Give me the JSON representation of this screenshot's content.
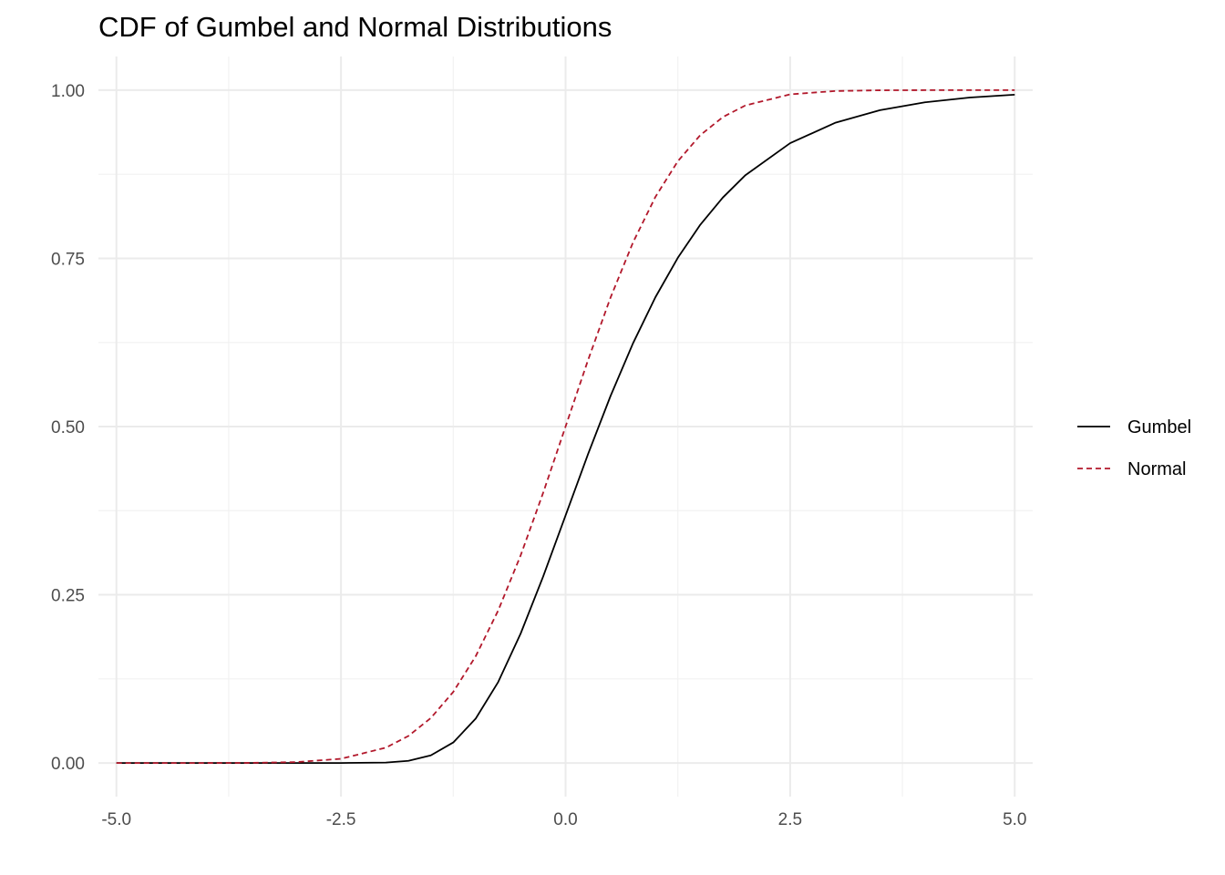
{
  "chart_data": {
    "type": "line",
    "title": "CDF of Gumbel and Normal Distributions",
    "xlabel": "",
    "ylabel": "",
    "xlim": [
      -5.2,
      5.2
    ],
    "ylim": [
      -0.05,
      1.05
    ],
    "x_ticks": [
      -5.0,
      -2.5,
      0.0,
      2.5,
      5.0
    ],
    "x_tick_labels": [
      "-5.0",
      "-2.5",
      "0.0",
      "2.5",
      "5.0"
    ],
    "y_ticks": [
      0.0,
      0.25,
      0.5,
      0.75,
      1.0
    ],
    "y_tick_labels": [
      "0.00",
      "0.25",
      "0.50",
      "0.75",
      "1.00"
    ],
    "grid": true,
    "legend_position": "right",
    "x": [
      -5.0,
      -4.5,
      -4.0,
      -3.5,
      -3.0,
      -2.5,
      -2.0,
      -1.75,
      -1.5,
      -1.25,
      -1.0,
      -0.75,
      -0.5,
      -0.25,
      0.0,
      0.25,
      0.5,
      0.75,
      1.0,
      1.25,
      1.5,
      1.75,
      2.0,
      2.5,
      3.0,
      3.5,
      4.0,
      4.5,
      5.0
    ],
    "series": [
      {
        "name": "Gumbel",
        "color": "#000000",
        "dash": "solid",
        "values": [
          0.0,
          0.0,
          0.0,
          0.0,
          0.0,
          0.0,
          0.0006,
          0.0032,
          0.0113,
          0.0305,
          0.066,
          0.1203,
          0.1923,
          0.2769,
          0.3679,
          0.4589,
          0.5452,
          0.6235,
          0.6922,
          0.7509,
          0.8,
          0.8403,
          0.8734,
          0.9212,
          0.9514,
          0.9703,
          0.9819,
          0.989,
          0.9933
        ]
      },
      {
        "name": "Normal",
        "color": "#b2182b",
        "dash": "dashed",
        "values": [
          0.0,
          0.0,
          0.0,
          0.0002,
          0.0013,
          0.0062,
          0.0228,
          0.0401,
          0.0668,
          0.1056,
          0.1587,
          0.2266,
          0.3085,
          0.4013,
          0.5,
          0.5987,
          0.6915,
          0.7734,
          0.8413,
          0.8944,
          0.9332,
          0.9599,
          0.9772,
          0.9938,
          0.9987,
          0.9998,
          1.0,
          1.0,
          1.0
        ]
      }
    ]
  }
}
